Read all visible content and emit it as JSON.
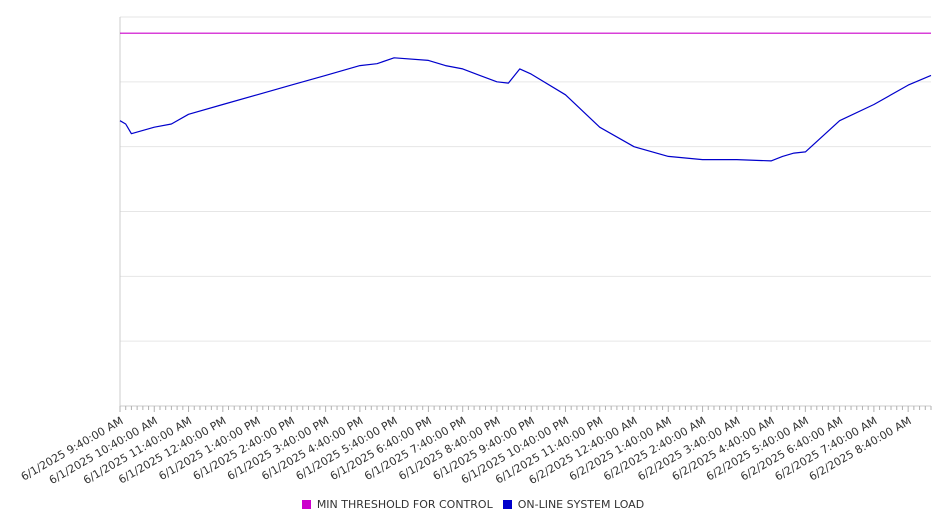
{
  "chart_data": {
    "type": "line",
    "title": "",
    "xlabel": "",
    "ylabel": "",
    "grid": true,
    "legend_position": "bottom-center",
    "x_tick_labels": [
      "6/1/2025 9:40:00 AM",
      "6/1/2025 10:40:00 AM",
      "6/1/2025 11:40:00 AM",
      "6/1/2025 12:40:00 PM",
      "6/1/2025 1:40:00 PM",
      "6/1/2025 2:40:00 PM",
      "6/1/2025 3:40:00 PM",
      "6/1/2025 4:40:00 PM",
      "6/1/2025 5:40:00 PM",
      "6/1/2025 6:40:00 PM",
      "6/1/2025 7:40:00 PM",
      "6/1/2025 8:40:00 PM",
      "6/1/2025 9:40:00 PM",
      "6/1/2025 10:40:00 PM",
      "6/1/2025 11:40:00 PM",
      "6/2/2025 12:40:00 AM",
      "6/2/2025 1:40:00 AM",
      "6/2/2025 2:40:00 AM",
      "6/2/2025 3:40:00 AM",
      "6/2/2025 4:40:00 AM",
      "6/2/2025 5:40:00 AM",
      "6/2/2025 6:40:00 AM",
      "6/2/2025 7:40:00 AM",
      "6/2/2025 8:40:00 AM"
    ],
    "ylim": [
      0,
      6
    ],
    "y_gridlines": [
      1,
      2,
      3,
      4,
      5,
      6
    ],
    "series": [
      {
        "name": "MIN THRESHOLD FOR CONTROL",
        "color": "#cc00cc",
        "x": [
          "6/1/2025 9:40:00 AM",
          "6/2/2025 9:20:00 AM"
        ],
        "y": [
          5.75,
          5.75
        ]
      },
      {
        "name": "ON-LINE SYSTEM LOAD",
        "color": "#0000cc",
        "x": [
          "6/1/2025 9:40:00 AM",
          "6/1/2025 9:50:00 AM",
          "6/1/2025 10:00:00 AM",
          "6/1/2025 10:40:00 AM",
          "6/1/2025 11:10:00 AM",
          "6/1/2025 11:40:00 AM",
          "6/1/2025 12:40:00 PM",
          "6/1/2025 1:40:00 PM",
          "6/1/2025 2:40:00 PM",
          "6/1/2025 3:40:00 PM",
          "6/1/2025 4:40:00 PM",
          "6/1/2025 5:10:00 PM",
          "6/1/2025 5:40:00 PM",
          "6/1/2025 6:40:00 PM",
          "6/1/2025 7:10:00 PM",
          "6/1/2025 7:40:00 PM",
          "6/1/2025 8:10:00 PM",
          "6/1/2025 8:40:00 PM",
          "6/1/2025 9:00:00 PM",
          "6/1/2025 9:20:00 PM",
          "6/1/2025 9:40:00 PM",
          "6/1/2025 10:40:00 PM",
          "6/1/2025 11:40:00 PM",
          "6/2/2025 12:40:00 AM",
          "6/2/2025 1:40:00 AM",
          "6/2/2025 2:40:00 AM",
          "6/2/2025 3:40:00 AM",
          "6/2/2025 4:40:00 AM",
          "6/2/2025 5:00:00 AM",
          "6/2/2025 5:20:00 AM",
          "6/2/2025 5:40:00 AM",
          "6/2/2025 6:40:00 AM",
          "6/2/2025 7:40:00 AM",
          "6/2/2025 8:40:00 AM",
          "6/2/2025 9:20:00 AM"
        ],
        "y": [
          4.4,
          4.35,
          4.2,
          4.3,
          4.35,
          4.5,
          4.65,
          4.8,
          4.95,
          5.1,
          5.25,
          5.28,
          5.37,
          5.33,
          5.25,
          5.2,
          5.1,
          5.0,
          4.98,
          5.2,
          5.12,
          4.8,
          4.3,
          4.0,
          3.85,
          3.8,
          3.8,
          3.78,
          3.85,
          3.9,
          3.92,
          4.4,
          4.65,
          4.95,
          5.1
        ]
      }
    ]
  }
}
